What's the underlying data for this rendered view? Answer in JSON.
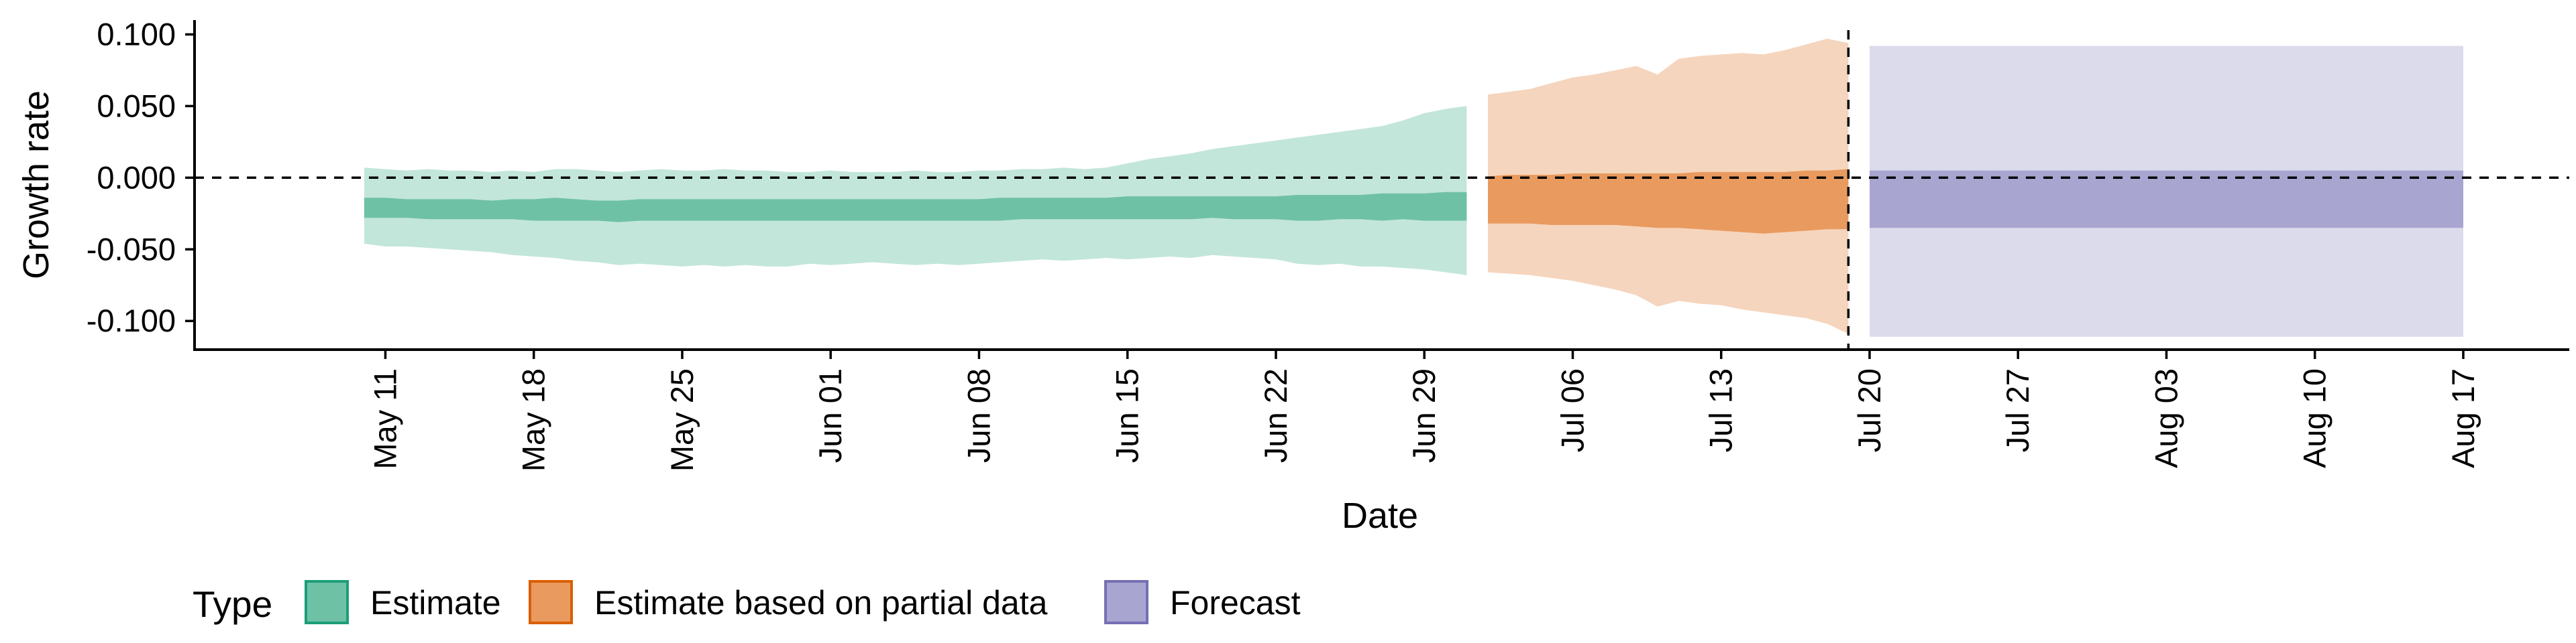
{
  "chart_data": {
    "type": "area",
    "xlabel": "Date",
    "ylabel": "Growth rate",
    "ylim": [
      -0.12,
      0.11
    ],
    "xlim": [
      "2020-05-02",
      "2020-08-22"
    ],
    "grid": false,
    "legend_position": "bottom-left",
    "y_ticks": [
      {
        "value": 0.1,
        "label": "0.100"
      },
      {
        "value": 0.05,
        "label": "0.050"
      },
      {
        "value": 0.0,
        "label": "0.000"
      },
      {
        "value": -0.05,
        "label": "-0.050"
      },
      {
        "value": -0.1,
        "label": "-0.100"
      }
    ],
    "x_ticks": [
      {
        "date": "2020-05-11",
        "label": "May 11"
      },
      {
        "date": "2020-05-18",
        "label": "May 18"
      },
      {
        "date": "2020-05-25",
        "label": "May 25"
      },
      {
        "date": "2020-06-01",
        "label": "Jun 01"
      },
      {
        "date": "2020-06-08",
        "label": "Jun 08"
      },
      {
        "date": "2020-06-15",
        "label": "Jun 15"
      },
      {
        "date": "2020-06-22",
        "label": "Jun 22"
      },
      {
        "date": "2020-06-29",
        "label": "Jun 29"
      },
      {
        "date": "2020-07-06",
        "label": "Jul 06"
      },
      {
        "date": "2020-07-13",
        "label": "Jul 13"
      },
      {
        "date": "2020-07-20",
        "label": "Jul 20"
      },
      {
        "date": "2020-07-27",
        "label": "Jul 27"
      },
      {
        "date": "2020-08-03",
        "label": "Aug 03"
      },
      {
        "date": "2020-08-10",
        "label": "Aug 10"
      },
      {
        "date": "2020-08-17",
        "label": "Aug 17"
      }
    ],
    "reference_lines": [
      {
        "axis": "y",
        "value": 0.0,
        "style": "dashed"
      },
      {
        "axis": "x",
        "date": "2020-07-19",
        "style": "dashed"
      }
    ],
    "legend": {
      "title": "Type",
      "entries": [
        "Estimate",
        "Estimate based on partial data",
        "Forecast"
      ]
    },
    "series": [
      {
        "name": "Estimate",
        "color_outer": "#c3e6da",
        "color_inner": "#6fc1a6",
        "border": "#1b9e77",
        "dates": [
          "2020-05-10",
          "2020-05-11",
          "2020-05-12",
          "2020-05-13",
          "2020-05-14",
          "2020-05-15",
          "2020-05-16",
          "2020-05-17",
          "2020-05-18",
          "2020-05-19",
          "2020-05-20",
          "2020-05-21",
          "2020-05-22",
          "2020-05-23",
          "2020-05-24",
          "2020-05-25",
          "2020-05-26",
          "2020-05-27",
          "2020-05-28",
          "2020-05-29",
          "2020-05-30",
          "2020-05-31",
          "2020-06-01",
          "2020-06-02",
          "2020-06-03",
          "2020-06-04",
          "2020-06-05",
          "2020-06-06",
          "2020-06-07",
          "2020-06-08",
          "2020-06-09",
          "2020-06-10",
          "2020-06-11",
          "2020-06-12",
          "2020-06-13",
          "2020-06-14",
          "2020-06-15",
          "2020-06-16",
          "2020-06-17",
          "2020-06-18",
          "2020-06-19",
          "2020-06-20",
          "2020-06-21",
          "2020-06-22",
          "2020-06-23",
          "2020-06-24",
          "2020-06-25",
          "2020-06-26",
          "2020-06-27",
          "2020-06-28",
          "2020-06-29",
          "2020-06-30",
          "2020-07-01"
        ],
        "upper90": [
          0.007,
          0.006,
          0.005,
          0.006,
          0.005,
          0.005,
          0.004,
          0.005,
          0.004,
          0.006,
          0.006,
          0.005,
          0.004,
          0.005,
          0.006,
          0.005,
          0.005,
          0.006,
          0.005,
          0.005,
          0.004,
          0.004,
          0.005,
          0.004,
          0.004,
          0.004,
          0.005,
          0.004,
          0.004,
          0.005,
          0.005,
          0.006,
          0.006,
          0.007,
          0.006,
          0.007,
          0.01,
          0.013,
          0.015,
          0.017,
          0.02,
          0.022,
          0.024,
          0.026,
          0.028,
          0.03,
          0.032,
          0.034,
          0.036,
          0.04,
          0.045,
          0.048,
          0.05
        ],
        "lower90": [
          -0.046,
          -0.048,
          -0.048,
          -0.049,
          -0.05,
          -0.051,
          -0.052,
          -0.054,
          -0.055,
          -0.056,
          -0.058,
          -0.059,
          -0.061,
          -0.06,
          -0.061,
          -0.062,
          -0.061,
          -0.062,
          -0.061,
          -0.062,
          -0.062,
          -0.06,
          -0.061,
          -0.06,
          -0.059,
          -0.06,
          -0.061,
          -0.06,
          -0.061,
          -0.06,
          -0.059,
          -0.058,
          -0.057,
          -0.058,
          -0.057,
          -0.056,
          -0.057,
          -0.056,
          -0.055,
          -0.056,
          -0.054,
          -0.055,
          -0.056,
          -0.057,
          -0.06,
          -0.061,
          -0.06,
          -0.062,
          -0.062,
          -0.063,
          -0.064,
          -0.066,
          -0.068
        ],
        "upper50": [
          -0.014,
          -0.014,
          -0.015,
          -0.015,
          -0.015,
          -0.015,
          -0.016,
          -0.015,
          -0.015,
          -0.014,
          -0.015,
          -0.016,
          -0.016,
          -0.015,
          -0.015,
          -0.015,
          -0.015,
          -0.015,
          -0.015,
          -0.015,
          -0.015,
          -0.015,
          -0.015,
          -0.015,
          -0.015,
          -0.015,
          -0.015,
          -0.015,
          -0.015,
          -0.015,
          -0.014,
          -0.014,
          -0.014,
          -0.014,
          -0.014,
          -0.014,
          -0.013,
          -0.013,
          -0.013,
          -0.013,
          -0.013,
          -0.013,
          -0.013,
          -0.013,
          -0.012,
          -0.012,
          -0.012,
          -0.012,
          -0.011,
          -0.011,
          -0.011,
          -0.01,
          -0.01
        ],
        "lower50": [
          -0.028,
          -0.028,
          -0.028,
          -0.029,
          -0.029,
          -0.029,
          -0.029,
          -0.029,
          -0.03,
          -0.03,
          -0.03,
          -0.03,
          -0.031,
          -0.03,
          -0.03,
          -0.03,
          -0.03,
          -0.03,
          -0.03,
          -0.03,
          -0.03,
          -0.03,
          -0.03,
          -0.03,
          -0.03,
          -0.03,
          -0.03,
          -0.03,
          -0.03,
          -0.03,
          -0.03,
          -0.029,
          -0.029,
          -0.029,
          -0.029,
          -0.029,
          -0.029,
          -0.029,
          -0.029,
          -0.029,
          -0.028,
          -0.029,
          -0.029,
          -0.029,
          -0.03,
          -0.03,
          -0.029,
          -0.029,
          -0.03,
          -0.029,
          -0.03,
          -0.03,
          -0.03
        ]
      },
      {
        "name": "Estimate based on partial data",
        "color_outer": "#f5d5bd",
        "color_inner": "#e99a5f",
        "border": "#d95f02",
        "dates": [
          "2020-07-02",
          "2020-07-03",
          "2020-07-04",
          "2020-07-05",
          "2020-07-06",
          "2020-07-07",
          "2020-07-08",
          "2020-07-09",
          "2020-07-10",
          "2020-07-11",
          "2020-07-12",
          "2020-07-13",
          "2020-07-14",
          "2020-07-15",
          "2020-07-16",
          "2020-07-17",
          "2020-07-18",
          "2020-07-19"
        ],
        "upper90": [
          0.058,
          0.06,
          0.062,
          0.066,
          0.07,
          0.072,
          0.075,
          0.078,
          0.072,
          0.083,
          0.085,
          0.086,
          0.087,
          0.086,
          0.089,
          0.093,
          0.097,
          0.094
        ],
        "lower90": [
          -0.066,
          -0.067,
          -0.068,
          -0.07,
          -0.072,
          -0.075,
          -0.078,
          -0.082,
          -0.09,
          -0.086,
          -0.088,
          -0.089,
          -0.092,
          -0.094,
          -0.096,
          -0.098,
          -0.102,
          -0.109
        ],
        "upper50": [
          0.001,
          0.002,
          0.002,
          0.002,
          0.003,
          0.003,
          0.003,
          0.003,
          0.003,
          0.003,
          0.004,
          0.004,
          0.004,
          0.004,
          0.004,
          0.005,
          0.005,
          0.006
        ],
        "lower50": [
          -0.032,
          -0.032,
          -0.032,
          -0.033,
          -0.033,
          -0.033,
          -0.033,
          -0.034,
          -0.035,
          -0.035,
          -0.036,
          -0.037,
          -0.038,
          -0.039,
          -0.038,
          -0.037,
          -0.036,
          -0.036
        ]
      },
      {
        "name": "Forecast",
        "color_outer": "#dcdbec",
        "color_inner": "#a9a5d1",
        "border": "#7570b3",
        "dates": [
          "2020-07-20",
          "2020-08-17"
        ],
        "upper90": [
          0.092,
          0.092
        ],
        "lower90": [
          -0.111,
          -0.111
        ],
        "upper50": [
          0.005,
          0.005
        ],
        "lower50": [
          -0.035,
          -0.035
        ]
      }
    ]
  }
}
